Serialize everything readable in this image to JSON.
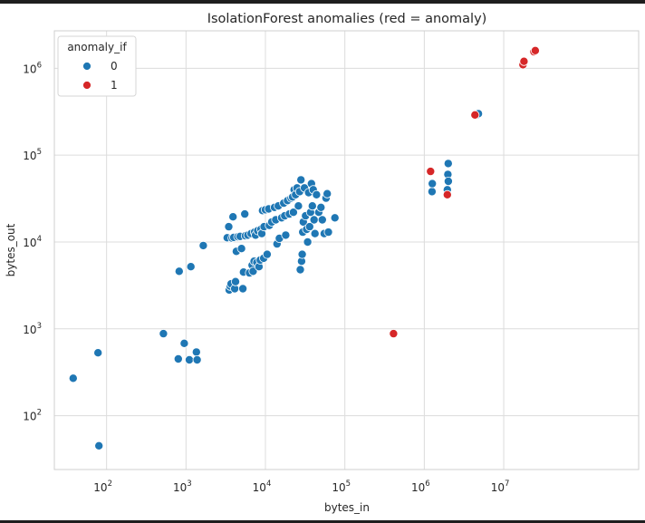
{
  "chart_data": {
    "type": "scatter",
    "title": "IsolationForest anomalies (red = anomaly)",
    "xlabel": "bytes_in",
    "ylabel": "bytes_out",
    "xscale": "log",
    "yscale": "log",
    "xlim": [
      22,
      500000000
    ],
    "ylim": [
      24,
      2700000
    ],
    "grid": true,
    "x_ticks": [
      {
        "value": 100,
        "base": "10",
        "exp": "2"
      },
      {
        "value": 1000,
        "base": "10",
        "exp": "3"
      },
      {
        "value": 10000,
        "base": "10",
        "exp": "4"
      },
      {
        "value": 100000,
        "base": "10",
        "exp": "5"
      },
      {
        "value": 1000000,
        "base": "10",
        "exp": "6"
      },
      {
        "value": 10000000,
        "base": "10",
        "exp": "7"
      }
    ],
    "y_ticks": [
      {
        "value": 100,
        "base": "10",
        "exp": "2"
      },
      {
        "value": 1000,
        "base": "10",
        "exp": "3"
      },
      {
        "value": 10000,
        "base": "10",
        "exp": "4"
      },
      {
        "value": 100000,
        "base": "10",
        "exp": "5"
      },
      {
        "value": 1000000,
        "base": "10",
        "exp": "6"
      }
    ],
    "legend": {
      "title": "anomaly_if",
      "placement": "top-left",
      "entries": [
        {
          "label": "0",
          "color": "#1f77b4"
        },
        {
          "label": "1",
          "color": "#d62728"
        }
      ]
    },
    "series": [
      {
        "name": "0",
        "color": "#1f77b4",
        "points": [
          [
            38,
            270
          ],
          [
            78,
            530
          ],
          [
            80,
            45
          ],
          [
            520,
            880
          ],
          [
            800,
            450
          ],
          [
            820,
            4600
          ],
          [
            950,
            680
          ],
          [
            1100,
            440
          ],
          [
            1150,
            5200
          ],
          [
            1350,
            540
          ],
          [
            1380,
            440
          ],
          [
            1650,
            9100
          ],
          [
            3300,
            11200
          ],
          [
            3450,
            15000
          ],
          [
            3500,
            2800
          ],
          [
            3600,
            3100
          ],
          [
            3700,
            3300
          ],
          [
            3800,
            11100
          ],
          [
            3900,
            19500
          ],
          [
            4000,
            11300
          ],
          [
            4100,
            2900
          ],
          [
            4200,
            3500
          ],
          [
            4300,
            7800
          ],
          [
            4500,
            11500
          ],
          [
            4800,
            11600
          ],
          [
            5000,
            8400
          ],
          [
            5200,
            2900
          ],
          [
            5300,
            4500
          ],
          [
            5500,
            21000
          ],
          [
            5600,
            11800
          ],
          [
            6000,
            12000
          ],
          [
            6300,
            4400
          ],
          [
            6600,
            12500
          ],
          [
            6800,
            5400
          ],
          [
            7000,
            4600
          ],
          [
            7200,
            6000
          ],
          [
            7300,
            13000
          ],
          [
            7500,
            12000
          ],
          [
            7800,
            5800
          ],
          [
            8000,
            13500
          ],
          [
            8300,
            5200
          ],
          [
            8600,
            6200
          ],
          [
            8800,
            14000
          ],
          [
            9000,
            12500
          ],
          [
            9200,
            23000
          ],
          [
            9500,
            6500
          ],
          [
            9600,
            15000
          ],
          [
            10000,
            23500
          ],
          [
            10500,
            7200
          ],
          [
            11000,
            24000
          ],
          [
            11200,
            15500
          ],
          [
            12000,
            17000
          ],
          [
            13000,
            25000
          ],
          [
            13500,
            18000
          ],
          [
            14000,
            9500
          ],
          [
            14500,
            26000
          ],
          [
            15000,
            11000
          ],
          [
            16000,
            19000
          ],
          [
            17000,
            28000
          ],
          [
            17500,
            20000
          ],
          [
            18000,
            12000
          ],
          [
            19000,
            30000
          ],
          [
            20000,
            21000
          ],
          [
            21000,
            32000
          ],
          [
            22000,
            33000
          ],
          [
            22500,
            22000
          ],
          [
            23000,
            40000
          ],
          [
            24000,
            35000
          ],
          [
            25000,
            42000
          ],
          [
            26000,
            26000
          ],
          [
            27000,
            38000
          ],
          [
            27500,
            4800
          ],
          [
            28000,
            52000
          ],
          [
            28500,
            6000
          ],
          [
            29000,
            7200
          ],
          [
            29500,
            13000
          ],
          [
            30000,
            17000
          ],
          [
            31000,
            42000
          ],
          [
            32000,
            20000
          ],
          [
            33000,
            14000
          ],
          [
            34000,
            10000
          ],
          [
            35000,
            37000
          ],
          [
            36000,
            15000
          ],
          [
            37000,
            22000
          ],
          [
            38000,
            47000
          ],
          [
            39000,
            26000
          ],
          [
            40000,
            40000
          ],
          [
            41000,
            18000
          ],
          [
            42000,
            12500
          ],
          [
            44000,
            35000
          ],
          [
            47000,
            22000
          ],
          [
            50000,
            25000
          ],
          [
            52000,
            18000
          ],
          [
            55000,
            12500
          ],
          [
            58000,
            32000
          ],
          [
            60000,
            36000
          ],
          [
            62000,
            13000
          ],
          [
            75000,
            19000
          ],
          [
            1250000,
            38000
          ],
          [
            1260000,
            47000
          ],
          [
            1950000,
            40000
          ],
          [
            1980000,
            60000
          ],
          [
            2000000,
            80000
          ],
          [
            2010000,
            50000
          ],
          [
            4600000,
            290000
          ],
          [
            4800000,
            300000
          ]
        ]
      },
      {
        "name": "1",
        "color": "#d62728",
        "points": [
          [
            410000,
            880
          ],
          [
            1200000,
            65000
          ],
          [
            1950000,
            35000
          ],
          [
            4350000,
            290000
          ],
          [
            17500000,
            1100000
          ],
          [
            18000000,
            1200000
          ],
          [
            24000000,
            1550000
          ],
          [
            25000000,
            1600000
          ]
        ]
      }
    ]
  }
}
